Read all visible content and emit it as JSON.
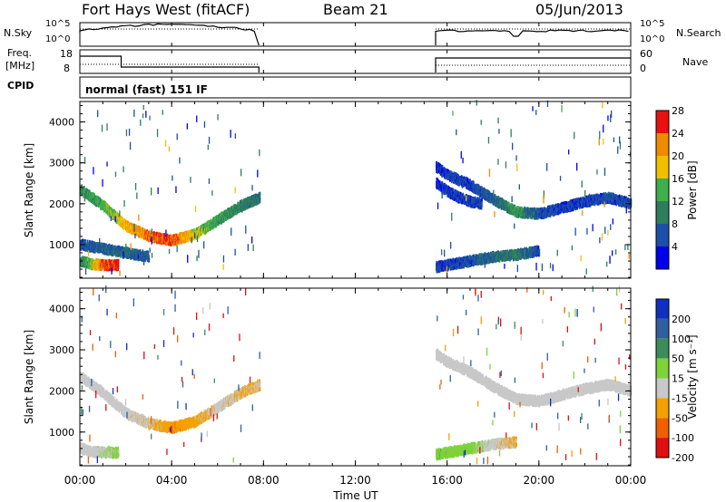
{
  "header": {
    "radar": "Fort Hays West (fitACF)",
    "beam": "Beam 21",
    "date": "05/Jun/2013"
  },
  "top_panels": {
    "nsky_label": "N.Sky",
    "nsky_ticks": [
      "10^5",
      "10^0"
    ],
    "nsearch_label": "N.Search",
    "nsearch_ticks": [
      "10^5",
      "10^0"
    ],
    "freq_label": "Freq.",
    "freq_unit": "[MHz]",
    "freq_ticks": [
      "18",
      "8"
    ],
    "nave_label": "Nave",
    "nave_ticks": [
      "60",
      "0"
    ],
    "cpid_label": "CPID",
    "cpid_text": "normal (fast) 151 IF"
  },
  "colors": {
    "data_gap_bg": "#ffffff",
    "frame": "#000000"
  },
  "chart_data": [
    {
      "type": "heatmap",
      "name": "power",
      "ylabel": "Slant Range [km]",
      "xlabel": "Time UT",
      "xlim": [
        "00:00",
        "24:00"
      ],
      "ylim": [
        180,
        4500
      ],
      "x_ticks": [
        "00:00",
        "04:00",
        "08:00",
        "12:00",
        "16:00",
        "20:00",
        "00:00"
      ],
      "y_ticks": [
        1000,
        2000,
        3000,
        4000
      ],
      "colorbar": {
        "label": "Power [dB]",
        "ticks": [
          4,
          8,
          12,
          16,
          20,
          24,
          28
        ],
        "range": [
          0,
          30
        ],
        "colors": [
          "#0000ee",
          "#1c4fa8",
          "#2e7d5c",
          "#3fae4c",
          "#f0c000",
          "#f08a00",
          "#e81010"
        ]
      },
      "coverage": [
        {
          "start": "00:00",
          "end": "07:50"
        },
        {
          "start": "15:30",
          "end": "24:00"
        }
      ],
      "features": [
        {
          "kind": "band",
          "t": [
            "00:00",
            "01:00",
            "02:00",
            "03:00",
            "04:00",
            "05:00",
            "06:00",
            "07:00",
            "07:50"
          ],
          "range_km": [
            2350,
            1950,
            1450,
            1200,
            1100,
            1250,
            1600,
            1950,
            2150
          ],
          "power_db": [
            11,
            14,
            19,
            23,
            24,
            17,
            12,
            10,
            9
          ]
        },
        {
          "kind": "band",
          "t": [
            "00:00",
            "00:30",
            "01:00",
            "01:40"
          ],
          "range_km": [
            600,
            520,
            500,
            500
          ],
          "power_db": [
            9,
            16,
            24,
            26
          ]
        },
        {
          "kind": "band",
          "t": [
            "00:00",
            "01:00",
            "02:00",
            "03:00"
          ],
          "range_km": [
            1000,
            900,
            800,
            700
          ],
          "power_db": [
            6,
            7,
            8,
            7
          ]
        },
        {
          "kind": "band",
          "t": [
            "15:30",
            "16:00",
            "17:00",
            "18:00",
            "19:00",
            "20:00",
            "21:00",
            "22:00",
            "23:00",
            "24:00"
          ],
          "range_km": [
            2900,
            2700,
            2450,
            2100,
            1800,
            1750,
            1900,
            2050,
            2150,
            2000
          ],
          "power_db": [
            4,
            5,
            5,
            7,
            12,
            6,
            5,
            5,
            6,
            6
          ]
        },
        {
          "kind": "band",
          "t": [
            "15:30",
            "16:00",
            "16:30",
            "17:00",
            "17:30"
          ],
          "range_km": [
            2500,
            2300,
            2150,
            2050,
            2000
          ],
          "power_db": [
            4,
            5,
            5,
            5,
            6
          ]
        },
        {
          "kind": "band",
          "t": [
            "15:30",
            "17:00",
            "18:00",
            "19:00",
            "20:00"
          ],
          "range_km": [
            450,
            600,
            700,
            750,
            850
          ],
          "power_db": [
            5,
            6,
            8,
            10,
            5
          ]
        }
      ]
    },
    {
      "type": "heatmap",
      "name": "velocity",
      "ylabel": "Slant Range [km]",
      "xlabel": "Time UT",
      "xlim": [
        "00:00",
        "24:00"
      ],
      "ylim": [
        180,
        4500
      ],
      "x_ticks": [
        "00:00",
        "04:00",
        "08:00",
        "12:00",
        "16:00",
        "20:00",
        "00:00"
      ],
      "y_ticks": [
        1000,
        2000,
        3000,
        4000
      ],
      "colorbar": {
        "label": "Velocity [m s⁻¹]",
        "ticks": [
          200,
          100,
          50,
          15,
          -15,
          -50,
          -100,
          -200
        ],
        "range": [
          -250,
          250
        ],
        "colors": [
          "#1030c0",
          "#2f5fa0",
          "#3c8c5a",
          "#7fd33a",
          "#c8c8c8",
          "#f5a000",
          "#f06000",
          "#e01010"
        ]
      },
      "coverage": [
        {
          "start": "00:00",
          "end": "07:50"
        },
        {
          "start": "15:30",
          "end": "24:00"
        }
      ],
      "features": [
        {
          "kind": "band",
          "t": [
            "00:00",
            "01:00",
            "02:00",
            "03:00",
            "04:00",
            "05:00",
            "06:00",
            "07:00",
            "07:50"
          ],
          "range_km": [
            2350,
            1950,
            1450,
            1200,
            1100,
            1250,
            1600,
            1950,
            2150
          ],
          "velocity": [
            0,
            0,
            0,
            -10,
            -40,
            -30,
            0,
            -20,
            -10
          ]
        },
        {
          "kind": "band",
          "t": [
            "00:00",
            "00:30",
            "01:00",
            "01:40"
          ],
          "range_km": [
            600,
            520,
            500,
            500
          ],
          "velocity": [
            0,
            0,
            5,
            30
          ]
        },
        {
          "kind": "band",
          "t": [
            "15:30",
            "16:00",
            "17:00",
            "18:00",
            "19:00",
            "20:00",
            "21:00",
            "22:00",
            "23:00",
            "24:00"
          ],
          "range_km": [
            2900,
            2700,
            2450,
            2100,
            1800,
            1750,
            1900,
            2050,
            2150,
            2000
          ],
          "velocity": [
            0,
            0,
            0,
            0,
            0,
            0,
            0,
            0,
            0,
            0
          ]
        },
        {
          "kind": "band",
          "t": [
            "15:30",
            "17:00",
            "18:00",
            "19:00"
          ],
          "range_km": [
            450,
            600,
            700,
            750
          ],
          "velocity": [
            40,
            30,
            0,
            -20
          ]
        }
      ]
    }
  ]
}
